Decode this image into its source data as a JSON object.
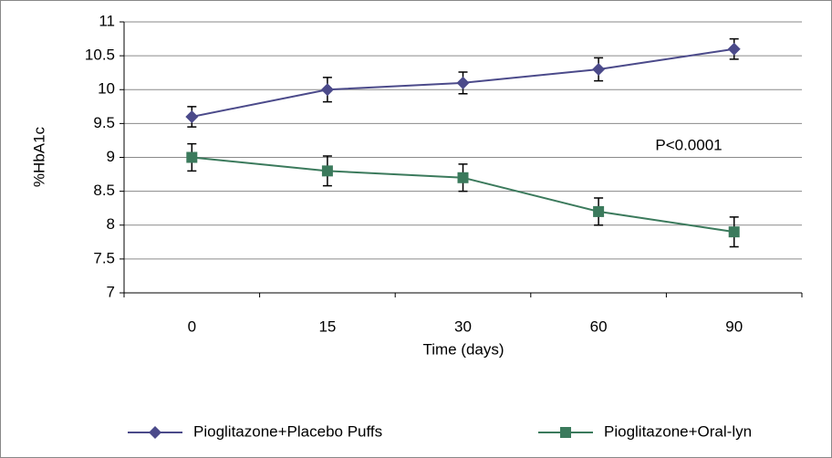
{
  "chart_data": {
    "type": "line",
    "y_label": "%HbA1c",
    "x_label": "Time (days)",
    "annotation": "P<0.0001",
    "categories": [
      "0",
      "15",
      "30",
      "60",
      "90"
    ],
    "series": [
      {
        "name": "Pioglitazone+Placebo Puffs",
        "color": "#4b4a8a",
        "marker": "diamond",
        "values": [
          9.6,
          10.0,
          10.1,
          10.3,
          10.6
        ],
        "errors": [
          0.15,
          0.18,
          0.16,
          0.17,
          0.15
        ]
      },
      {
        "name": "Pioglitazone+Oral-lyn",
        "color": "#3b7a5c",
        "marker": "square",
        "values": [
          9.0,
          8.8,
          8.7,
          8.2,
          7.9
        ],
        "errors": [
          0.2,
          0.22,
          0.2,
          0.2,
          0.22
        ]
      }
    ],
    "ylim": [
      7,
      11
    ],
    "yticks": [
      7,
      7.5,
      8,
      8.5,
      9,
      9.5,
      10,
      10.5,
      11
    ],
    "grid": true
  }
}
